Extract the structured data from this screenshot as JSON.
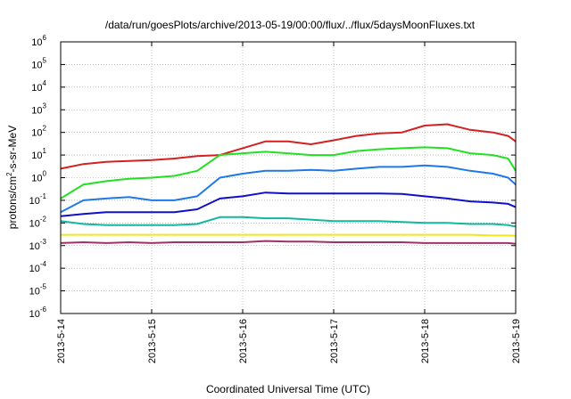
{
  "chart_data": {
    "type": "line",
    "title": "/data/run/goesPlots/archive/2013-05-19/00:00/flux/../flux/5daysMoonFluxes.txt",
    "xlabel": "Coordinated Universal Time (UTC)",
    "ylabel": "protons/cm²-s-sr-MeV",
    "ylabel_parts": {
      "pre": "protons/cm",
      "sup": "2",
      "post": "-s-sr-MeV"
    },
    "y_scale": "log",
    "ylim": [
      1e-06,
      1000000.0
    ],
    "y_ticks": [
      {
        "exp": "-6",
        "value": 1e-06
      },
      {
        "exp": "-5",
        "value": 1e-05
      },
      {
        "exp": "-4",
        "value": 0.0001
      },
      {
        "exp": "-3",
        "value": 0.001
      },
      {
        "exp": "-2",
        "value": 0.01
      },
      {
        "exp": "-1",
        "value": 0.1
      },
      {
        "exp": "0",
        "value": 1
      },
      {
        "exp": "1",
        "value": 10
      },
      {
        "exp": "2",
        "value": 100
      },
      {
        "exp": "3",
        "value": 1000.0
      },
      {
        "exp": "4",
        "value": 10000.0
      },
      {
        "exp": "5",
        "value": 100000.0
      },
      {
        "exp": "6",
        "value": 1000000.0
      }
    ],
    "y_tick_base": "10",
    "x_ticks": [
      "2013-5-14",
      "2013-5-15",
      "2013-5-16",
      "2013-5-17",
      "2013-5-18",
      "2013-5-19"
    ],
    "grid": true,
    "x": [
      "2013-05-14T00:00",
      "2013-05-14T06:00",
      "2013-05-14T12:00",
      "2013-05-14T18:00",
      "2013-05-15T00:00",
      "2013-05-15T06:00",
      "2013-05-15T12:00",
      "2013-05-15T18:00",
      "2013-05-16T00:00",
      "2013-05-16T06:00",
      "2013-05-16T12:00",
      "2013-05-16T18:00",
      "2013-05-17T00:00",
      "2013-05-17T06:00",
      "2013-05-17T12:00",
      "2013-05-17T18:00",
      "2013-05-18T00:00",
      "2013-05-18T06:00",
      "2013-05-18T12:00",
      "2013-05-18T18:00",
      "2013-05-18T22:00",
      "2013-05-19T00:00"
    ],
    "series": [
      {
        "color": "#d42020",
        "values": [
          2.5,
          4,
          5,
          5.5,
          6,
          7,
          9,
          10,
          20,
          40,
          40,
          30,
          45,
          70,
          90,
          100,
          200,
          230,
          130,
          100,
          70,
          40
        ]
      },
      {
        "color": "#22e022",
        "values": [
          0.12,
          0.5,
          0.7,
          0.9,
          1.0,
          1.2,
          2.0,
          10,
          12,
          14,
          12,
          10,
          10,
          15,
          18,
          20,
          22,
          20,
          12,
          10,
          7,
          2
        ]
      },
      {
        "color": "#1e78e6",
        "values": [
          0.03,
          0.1,
          0.12,
          0.14,
          0.1,
          0.1,
          0.15,
          1.0,
          1.5,
          2.0,
          2.0,
          2.2,
          2.0,
          2.5,
          3.0,
          3.0,
          3.5,
          3.0,
          2.0,
          1.5,
          1.0,
          0.5
        ]
      },
      {
        "color": "#1010c8",
        "values": [
          0.02,
          0.025,
          0.03,
          0.03,
          0.03,
          0.03,
          0.04,
          0.12,
          0.15,
          0.22,
          0.2,
          0.2,
          0.2,
          0.2,
          0.2,
          0.19,
          0.15,
          0.12,
          0.09,
          0.08,
          0.07,
          0.05
        ]
      },
      {
        "color": "#10b8a0",
        "values": [
          0.012,
          0.009,
          0.008,
          0.008,
          0.008,
          0.008,
          0.009,
          0.018,
          0.018,
          0.016,
          0.016,
          0.014,
          0.012,
          0.012,
          0.012,
          0.011,
          0.01,
          0.01,
          0.009,
          0.009,
          0.008,
          0.007
        ]
      },
      {
        "color": "#f0e81a",
        "values": [
          0.003,
          0.003,
          0.003,
          0.003,
          0.003,
          0.003,
          0.003,
          0.003,
          0.003,
          0.003,
          0.003,
          0.003,
          0.003,
          0.003,
          0.003,
          0.003,
          0.003,
          0.003,
          0.003,
          0.0028,
          0.0028,
          0.0027
        ]
      },
      {
        "color": "#a0306a",
        "values": [
          0.0013,
          0.0014,
          0.0013,
          0.0014,
          0.0013,
          0.0014,
          0.0014,
          0.0014,
          0.0014,
          0.0016,
          0.0015,
          0.0015,
          0.0014,
          0.0014,
          0.0014,
          0.0014,
          0.0013,
          0.0013,
          0.0013,
          0.0013,
          0.0013,
          0.0012
        ]
      }
    ]
  }
}
